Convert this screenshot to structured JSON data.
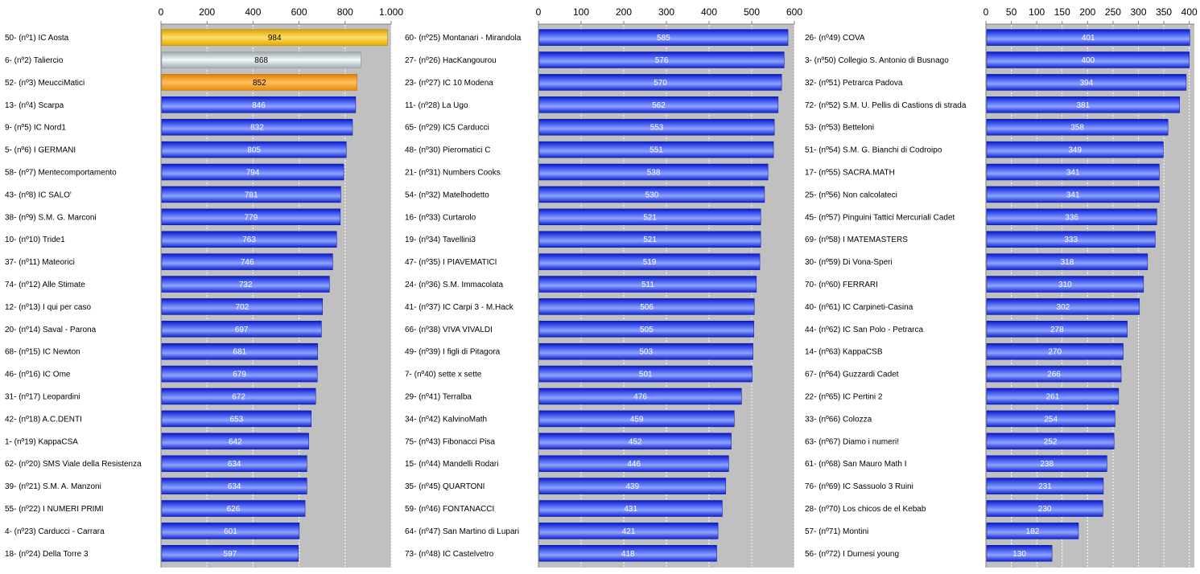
{
  "chart_data": [
    {
      "type": "bar",
      "orientation": "horizontal",
      "xlim": [
        0,
        1000
      ],
      "ticks": [
        0,
        200,
        400,
        600,
        800,
        1000
      ],
      "tick_labels": [
        "0",
        "200",
        "400",
        "600",
        "800",
        "1.000"
      ],
      "grid": true,
      "categories": [
        "50- (nº1) IC Aosta",
        "6- (nº2) Taliercio",
        "52- (nº3) MeucciMatici",
        "13- (nº4) Scarpa",
        "9- (nº5) IC Nord1",
        "5- (nº6) I GERMANI",
        "58- (nº7) Mentecomportamento",
        "43- (nº8) IC SALO'",
        "38- (nº9) S.M. G. Marconi",
        "10- (nº10) Tride1",
        "37- (nº11) Mateorici",
        "74- (nº12) Alle Stimate",
        "12- (nº13) I qui per caso",
        "20- (nº14) Saval - Parona",
        "68- (nº15) IC Newton",
        "46- (nº16) IC Ome",
        "31- (nº17) Leopardini",
        "42- (nº18) A.C.DENTI",
        "1- (nº19) KappaCSA",
        "62- (nº20) SMS Viale della Resistenza",
        "39- (nº21) S.M. A. Manzoni",
        "55- (nº22) I NUMERI PRIMI",
        "4- (nº23) Carducci - Carrara",
        "18- (nº24) Della Torre 3"
      ],
      "values": [
        984,
        868,
        852,
        846,
        832,
        805,
        794,
        781,
        779,
        763,
        746,
        732,
        702,
        697,
        681,
        679,
        672,
        653,
        642,
        634,
        634,
        626,
        601,
        597
      ]
    },
    {
      "type": "bar",
      "orientation": "horizontal",
      "xlim": [
        0,
        600
      ],
      "ticks": [
        0,
        100,
        200,
        300,
        400,
        500,
        600
      ],
      "tick_labels": [
        "0",
        "100",
        "200",
        "300",
        "400",
        "500",
        "600"
      ],
      "grid": true,
      "categories": [
        "60- (nº25) Montanari - Mirandola",
        "27- (nº26) HacKangourou",
        "23- (nº27) IC 10 Modena",
        "11- (nº28) La Ugo",
        "65- (nº29) IC5 Carducci",
        "48- (nº30) Pieromatici C",
        "21- (nº31) Numbers Cooks",
        "54- (nº32) Matelhodetto",
        "16- (nº33) Curtarolo",
        "19- (nº34) Tavellini3",
        "47- (nº35) I PIAVEMATICI",
        "24- (nº36) S.M. Immacolata",
        "41- (nº37) IC Carpi 3 - M.Hack",
        "66- (nº38) VIVA VIVALDI",
        "49- (nº39) I figli di Pitagora",
        "7- (nº40) sette x sette",
        "29- (nº41) Terralba",
        "34- (nº42) KalvinoMath",
        "75- (nº43) Fibonacci Pisa",
        "15- (nº44) Mandelli Rodari",
        "35- (nº45) QUARTONI",
        "59- (nº46) FONTANACCI",
        "64- (nº47) San Martino di Lupari",
        "73- (nº48) IC Castelvetro"
      ],
      "values": [
        585,
        576,
        570,
        562,
        553,
        551,
        538,
        530,
        521,
        521,
        519,
        511,
        506,
        505,
        503,
        501,
        476,
        459,
        452,
        446,
        439,
        431,
        421,
        418
      ]
    },
    {
      "type": "bar",
      "orientation": "horizontal",
      "xlim": [
        0,
        410
      ],
      "ticks": [
        0,
        50,
        100,
        150,
        200,
        250,
        300,
        350,
        400
      ],
      "tick_labels": [
        "0",
        "50",
        "100",
        "150",
        "200",
        "250",
        "300",
        "350",
        "400"
      ],
      "grid": true,
      "categories": [
        "26- (nº49) COVA",
        "3- (nº50) Collegio S. Antonio di Busnago",
        "32- (nº51) Petrarca Padova",
        "72- (nº52) S.M. U. Pellis di Castions di strada",
        "53- (nº53) Betteloni",
        "51- (nº54) S.M. G. Bianchi di Codroipo",
        "17- (nº55) SACRA.MATH",
        "25- (nº56) Non calcolateci",
        "45- (nº57) Pinguini Tattici Mercuriali Cadet",
        "69- (nº58) I MATEMASTERS",
        "30- (nº59) Di Vona-Speri",
        "70- (nº60) FERRARI",
        "40- (nº61) IC Carpineti-Casina",
        "44- (nº62) IC San Polo - Petrarca",
        "14- (nº63) KappaCSB",
        "67- (nº64) Guzzardi Cadet",
        "22- (nº65) IC Pertini 2",
        "33- (nº66) Colozza",
        "63- (nº67) Diamo i numeri!",
        "61- (nº68) San Mauro Math I",
        "76- (nº69) IC Sassuolo 3 Ruini",
        "28- (nº70) Los chicos de el Kebab",
        "57- (nº71) Montini",
        "56- (nº72) I Durnesi young"
      ],
      "values": [
        401,
        400,
        394,
        381,
        358,
        349,
        341,
        341,
        336,
        333,
        318,
        310,
        302,
        278,
        270,
        266,
        261,
        254,
        252,
        238,
        231,
        230,
        182,
        130
      ]
    }
  ],
  "colors": {
    "plot_background": "#c0c0c0",
    "grid": "#ffffff",
    "bar_default": "#3a4cff",
    "bar_gold": "#f2bb10",
    "bar_silver": "#c5cdd3",
    "bar_bronze": "#ef9412"
  }
}
